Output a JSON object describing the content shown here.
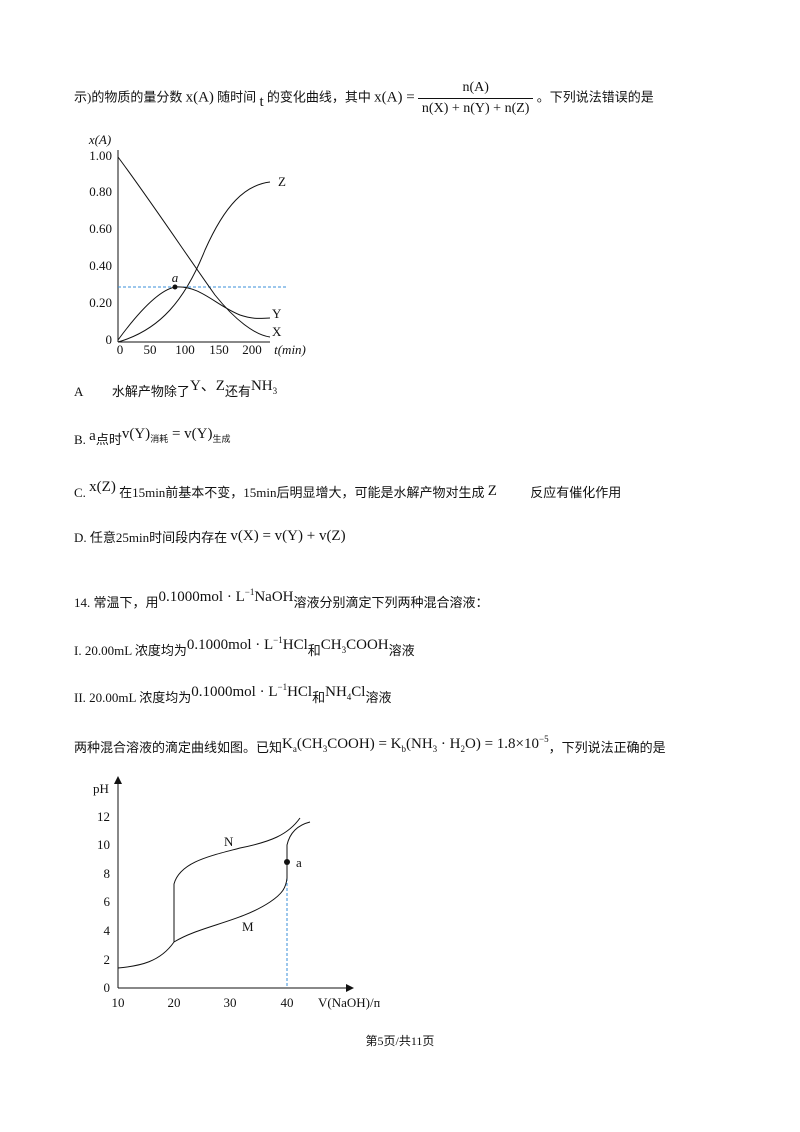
{
  "intro": {
    "text": "示)的物质的量分数",
    "xa": "x(A)",
    "text2": "随时间",
    "t": "t",
    "text3": "的变化曲线，其中",
    "lhs": "x(A) =",
    "numerator": "n(A)",
    "denominator": "n(X) + n(Y) + n(Z)",
    "text4": "。下列说法错误的是"
  },
  "figure1": {
    "y_axis_label": "x(A)",
    "x_axis_label": "t(min)",
    "yticks": [
      "1.00",
      "0.80",
      "0.60",
      "0.40",
      "0.20",
      "0"
    ],
    "xticks": [
      "0",
      "50",
      "100",
      "150",
      "200"
    ],
    "curves": [
      "Z",
      "Y",
      "X"
    ],
    "point": "a"
  },
  "options": [
    {
      "label": "A",
      "parts": [
        "水解产物除了",
        "Y、Z",
        "还有",
        "NH",
        "3"
      ]
    },
    {
      "label": "B.",
      "parts": [
        "a",
        "点时",
        "v(Y)",
        "消耗",
        "= v(Y)",
        "生成"
      ]
    },
    {
      "label": "C.",
      "parts": [
        "x(Z)",
        "在15min前基本不变，15min后明显增大，可能是水解产物对生成",
        "Z",
        "反应有催化作用"
      ]
    },
    {
      "label": "D.",
      "parts": [
        "任意25min时间段内存在",
        "v(X) = v(Y) + v(Z)"
      ]
    }
  ],
  "question14": {
    "number": "14.",
    "stem": [
      "常温下，用",
      "0.1000mol · L",
      "−1",
      "NaOH",
      "溶液分别滴定下列两种混合溶液："
    ],
    "solutions": [
      {
        "label": "I.",
        "parts": [
          "20.00mL 浓度均为",
          "0.1000mol · L",
          "−1",
          "HCl",
          "和",
          "CH",
          "3",
          "COOH",
          "溶液"
        ]
      },
      {
        "label": "II.",
        "parts": [
          "20.00mL 浓度均为",
          "0.1000mol · L",
          "−1",
          "HCl",
          "和",
          "NH",
          "4",
          "Cl",
          "溶液"
        ]
      }
    ],
    "known": [
      "两种混合溶液的滴定曲线如图。已知",
      "K",
      "a",
      "(CH",
      "3",
      "COOH) = K",
      "b",
      "(NH",
      "3",
      " · H",
      "2",
      "O) = 1.8×10",
      "−5",
      "，下列说法正确的是"
    ]
  },
  "figure2": {
    "y_axis_label": "pH",
    "x_axis_label": "V(NaOH)/mL",
    "yticks": [
      "12",
      "10",
      "8",
      "6",
      "4",
      "2",
      "0"
    ],
    "xticks": [
      "10",
      "20",
      "30",
      "40"
    ],
    "curves": [
      "N",
      "M"
    ],
    "point": "a"
  },
  "footer": "第5页/共11页"
}
